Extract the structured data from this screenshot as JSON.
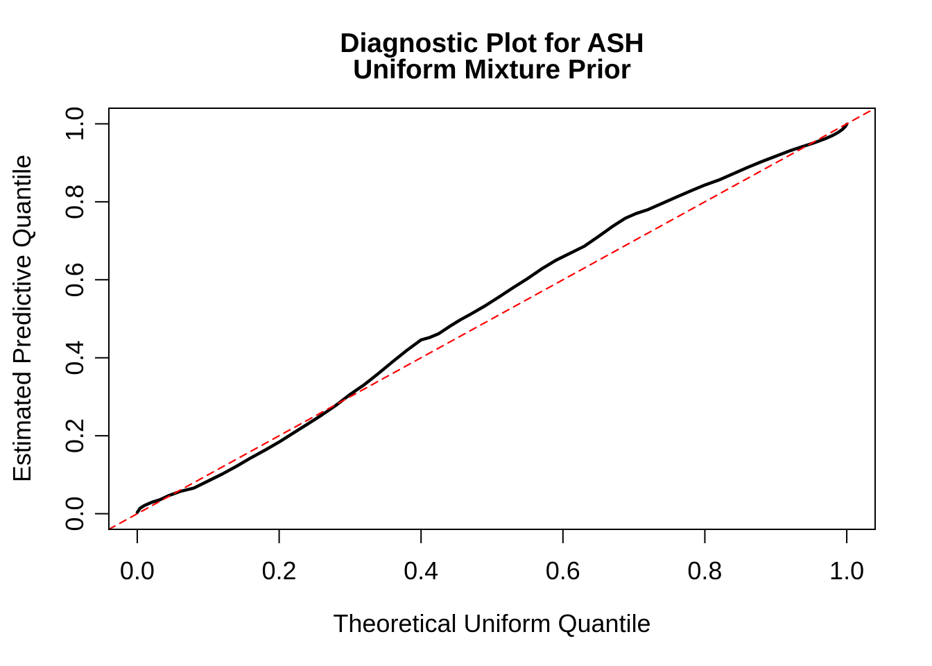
{
  "figure": {
    "title_line1": "Diagnostic Plot for ASH",
    "title_line2": "Uniform Mixture Prior",
    "xlabel": "Theoretical Uniform Quantile",
    "ylabel": "Estimated Predictive Quantile",
    "background_color": "#ffffff",
    "foreground_color": "#000000"
  },
  "chart_data": {
    "type": "line",
    "title": "Diagnostic Plot for ASH\nUniform Mixture Prior",
    "xlabel": "Theoretical Uniform Quantile",
    "ylabel": "Estimated Predictive Quantile",
    "xlim": [
      -0.04,
      1.04
    ],
    "ylim": [
      -0.04,
      1.04
    ],
    "x_ticks": [
      0.0,
      0.2,
      0.4,
      0.6,
      0.8,
      1.0
    ],
    "y_ticks": [
      0.0,
      0.2,
      0.4,
      0.6,
      0.8,
      1.0
    ],
    "x_tick_labels": [
      "0.0",
      "0.2",
      "0.4",
      "0.6",
      "0.8",
      "1.0"
    ],
    "y_tick_labels": [
      "0.0",
      "0.2",
      "0.4",
      "0.6",
      "0.8",
      "1.0"
    ],
    "grid": false,
    "legend": "none",
    "series": [
      {
        "name": "estimated-predictive-quantile-curve",
        "type": "line",
        "color": "#000000",
        "width": 4.5,
        "dash": null,
        "points": [
          [
            0.0,
            0.003
          ],
          [
            0.004,
            0.014
          ],
          [
            0.01,
            0.021
          ],
          [
            0.02,
            0.029
          ],
          [
            0.032,
            0.036
          ],
          [
            0.045,
            0.047
          ],
          [
            0.06,
            0.057
          ],
          [
            0.08,
            0.066
          ],
          [
            0.1,
            0.084
          ],
          [
            0.12,
            0.102
          ],
          [
            0.14,
            0.122
          ],
          [
            0.16,
            0.143
          ],
          [
            0.18,
            0.163
          ],
          [
            0.2,
            0.184
          ],
          [
            0.22,
            0.207
          ],
          [
            0.24,
            0.23
          ],
          [
            0.26,
            0.253
          ],
          [
            0.28,
            0.278
          ],
          [
            0.3,
            0.306
          ],
          [
            0.32,
            0.331
          ],
          [
            0.34,
            0.36
          ],
          [
            0.36,
            0.39
          ],
          [
            0.38,
            0.419
          ],
          [
            0.4,
            0.446
          ],
          [
            0.412,
            0.452
          ],
          [
            0.425,
            0.462
          ],
          [
            0.44,
            0.48
          ],
          [
            0.455,
            0.497
          ],
          [
            0.47,
            0.512
          ],
          [
            0.49,
            0.533
          ],
          [
            0.51,
            0.556
          ],
          [
            0.53,
            0.58
          ],
          [
            0.55,
            0.603
          ],
          [
            0.57,
            0.628
          ],
          [
            0.59,
            0.65
          ],
          [
            0.61,
            0.668
          ],
          [
            0.63,
            0.686
          ],
          [
            0.65,
            0.711
          ],
          [
            0.67,
            0.737
          ],
          [
            0.688,
            0.758
          ],
          [
            0.703,
            0.77
          ],
          [
            0.72,
            0.78
          ],
          [
            0.74,
            0.796
          ],
          [
            0.76,
            0.812
          ],
          [
            0.78,
            0.828
          ],
          [
            0.8,
            0.843
          ],
          [
            0.82,
            0.856
          ],
          [
            0.84,
            0.872
          ],
          [
            0.86,
            0.888
          ],
          [
            0.88,
            0.903
          ],
          [
            0.9,
            0.917
          ],
          [
            0.92,
            0.931
          ],
          [
            0.94,
            0.943
          ],
          [
            0.955,
            0.952
          ],
          [
            0.97,
            0.962
          ],
          [
            0.98,
            0.97
          ],
          [
            0.988,
            0.978
          ],
          [
            0.994,
            0.986
          ],
          [
            0.998,
            0.993
          ],
          [
            1.0,
            0.999
          ]
        ]
      },
      {
        "name": "identity-reference-line",
        "type": "line",
        "color": "#FF0000",
        "width": 2.2,
        "dash": [
          10,
          8
        ],
        "points": [
          [
            -0.04,
            -0.04
          ],
          [
            1.04,
            1.04
          ]
        ]
      }
    ]
  }
}
